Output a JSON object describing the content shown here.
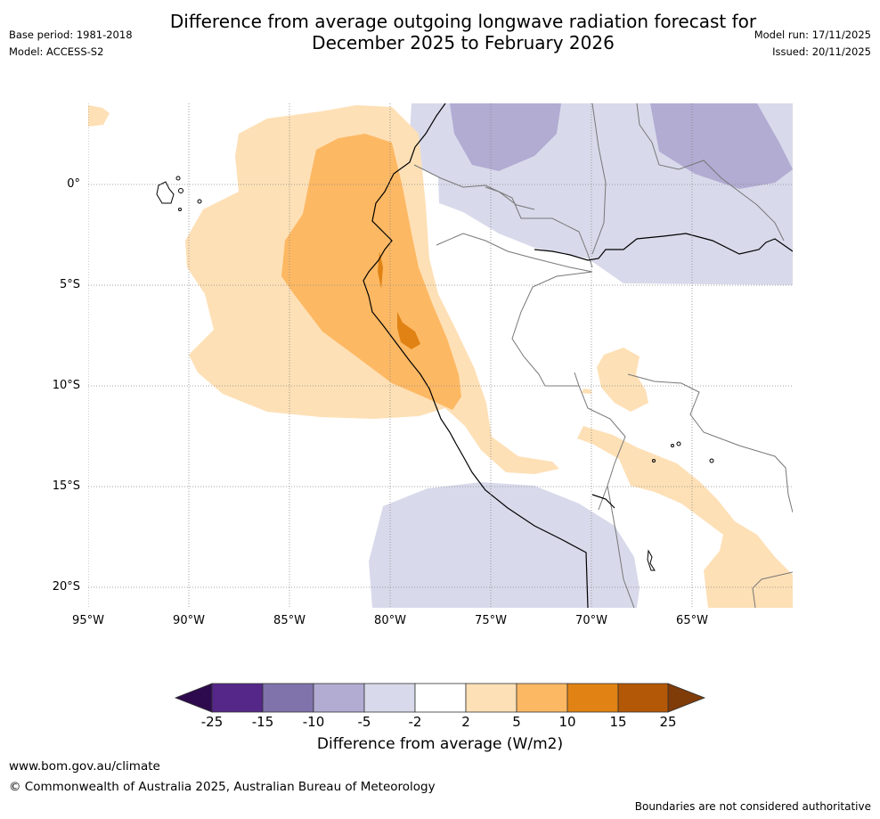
{
  "title": {
    "line1": "Difference from average outgoing longwave radiation forecast for",
    "line2": "December 2025 to February 2026"
  },
  "meta": {
    "base_period": "Base period: 1981-2018",
    "model": "Model: ACCESS-S2",
    "model_run": "Model run: 17/11/2025",
    "issued": "Issued: 20/11/2025"
  },
  "map": {
    "lat_labels": [
      "0°",
      "5°S",
      "10°S",
      "15°S",
      "20°S"
    ],
    "lon_labels": [
      "95°W",
      "90°W",
      "85°W",
      "80°W",
      "75°W",
      "70°W",
      "65°W"
    ]
  },
  "colorbar": {
    "ticks": [
      "-25",
      "-15",
      "-10",
      "-5",
      "-2",
      "2",
      "5",
      "10",
      "15",
      "25"
    ],
    "colors": {
      "below_min": "#2d0a4e",
      "bins": [
        "#542788",
        "#8073ac",
        "#b2abd2",
        "#d8daeb",
        "#ffffff",
        "#fee0b6",
        "#fdb863",
        "#e08214",
        "#b35806"
      ],
      "above_max": "#7f3b08"
    },
    "label": "Difference from average (W/m2)"
  },
  "footer": {
    "url": "www.bom.gov.au/climate",
    "copyright": "© Commonwealth of Australia 2025, Australian Bureau of Meteorology",
    "disclaimer": "Boundaries are not considered authoritative"
  }
}
